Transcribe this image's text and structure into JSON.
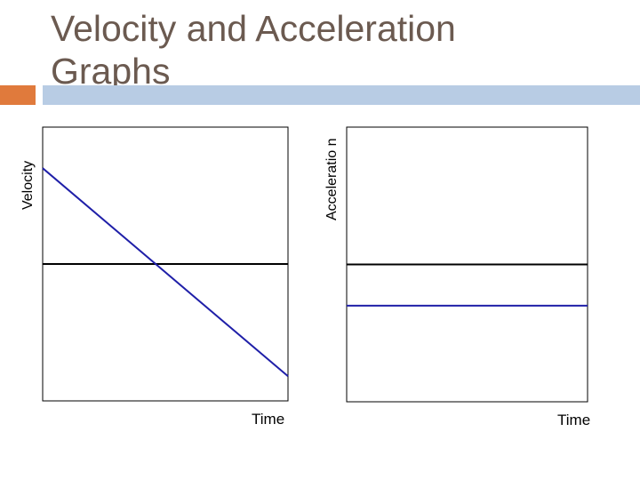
{
  "slide": {
    "title": "Velocity and Acceleration Graphs",
    "colors": {
      "title": "#6b5a50",
      "accent_orange": "#e07a3c",
      "accent_blue": "#b8cce4"
    }
  },
  "chart_data": [
    {
      "type": "line",
      "title": "",
      "xlabel": "Time",
      "ylabel": "Velocity",
      "xlim": [
        0,
        10
      ],
      "ylim": [
        -5,
        5
      ],
      "reference_line": {
        "y": 0,
        "color": "#000000"
      },
      "series": [
        {
          "x": [
            0,
            10
          ],
          "y": [
            3.5,
            -4.1
          ],
          "color": "#1f1fa8"
        }
      ],
      "grid": false,
      "legend": "none"
    },
    {
      "type": "line",
      "title": "",
      "xlabel": "Time",
      "ylabel": "Acceleratio n",
      "xlim": [
        0,
        10
      ],
      "ylim": [
        -5,
        5
      ],
      "reference_line": {
        "y": 0,
        "color": "#000000"
      },
      "series": [
        {
          "x": [
            0,
            10
          ],
          "y": [
            -1.5,
            -1.5
          ],
          "color": "#1f1fa8"
        }
      ],
      "grid": false,
      "legend": "none"
    }
  ]
}
